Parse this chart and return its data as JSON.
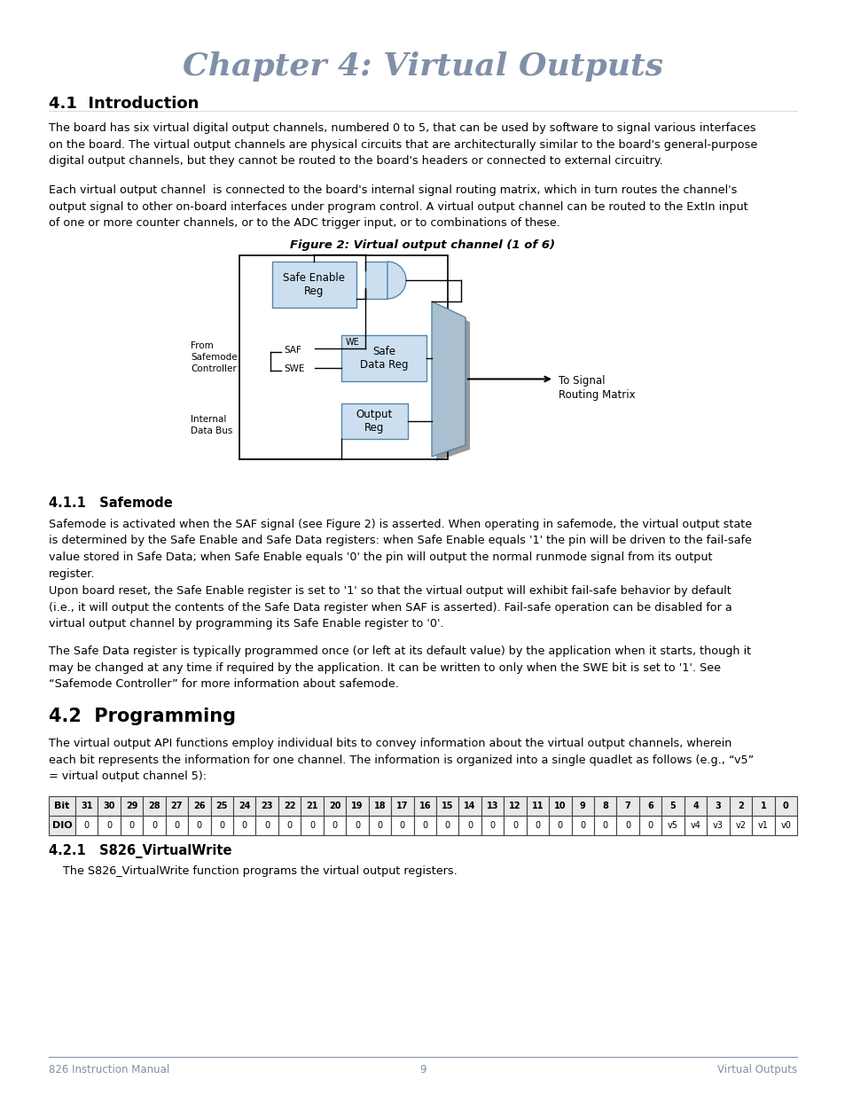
{
  "title": "Chapter 4: Virtual Outputs",
  "title_color": "#8090a8",
  "title_fontsize": 26,
  "section_41_title": "4.1  Introduction",
  "section_41_text1": "The board has six virtual digital output channels, numbered 0 to 5, that can be used by software to signal various interfaces\non the board. The virtual output channels are physical circuits that are architecturally similar to the board's general-purpose\ndigital output channels, but they cannot be routed to the board's headers or connected to external circuitry.",
  "section_41_text2": "Each virtual output channel  is connected to the board's internal signal routing matrix, which in turn routes the channel's\noutput signal to other on-board interfaces under program control. A virtual output channel can be routed to the ExtIn input\nof one or more counter channels, or to the ADC trigger input, or to combinations of these.",
  "figure_caption": "Figure 2: Virtual output channel (1 of 6)",
  "section_411_title": "4.1.1   Safemode",
  "section_411_text1": "Safemode is activated when the SAF signal (see Figure 2) is asserted. When operating in safemode, the virtual output state\nis determined by the Safe Enable and Safe Data registers: when Safe Enable equals '1' the pin will be driven to the fail-safe\nvalue stored in Safe Data; when Safe Enable equals '0' the pin will output the normal runmode signal from its output\nregister.",
  "section_411_text2": "Upon board reset, the Safe Enable register is set to '1' so that the virtual output will exhibit fail-safe behavior by default\n(i.e., it will output the contents of the Safe Data register when SAF is asserted). Fail-safe operation can be disabled for a\nvirtual output channel by programming its Safe Enable register to '0'.",
  "section_411_text3": "The Safe Data register is typically programmed once (or left at its default value) by the application when it starts, though it\nmay be changed at any time if required by the application. It can be written to only when the SWE bit is set to '1'. See\n“Safemode Controller” for more information about safemode.",
  "section_42_title": "4.2  Programming",
  "section_42_text1": "The virtual output API functions employ individual bits to convey information about the virtual output channels, wherein\neach bit represents the information for one channel. The information is organized into a single quadlet as follows (e.g., “v5”\n= virtual output channel 5):",
  "table_headers": [
    "Bit",
    "31",
    "30",
    "29",
    "28",
    "27",
    "26",
    "25",
    "24",
    "23",
    "22",
    "21",
    "20",
    "19",
    "18",
    "17",
    "16",
    "15",
    "14",
    "13",
    "12",
    "11",
    "10",
    "9",
    "8",
    "7",
    "6",
    "5",
    "4",
    "3",
    "2",
    "1",
    "0"
  ],
  "table_row2_label": "DIO",
  "table_row2_values": [
    "0",
    "0",
    "0",
    "0",
    "0",
    "0",
    "0",
    "0",
    "0",
    "0",
    "0",
    "0",
    "0",
    "0",
    "0",
    "0",
    "0",
    "0",
    "0",
    "0",
    "0",
    "0",
    "0",
    "0",
    "0",
    "0",
    "v5",
    "v4",
    "v3",
    "v2",
    "v1",
    "v0"
  ],
  "section_421_title": "4.2.1   S826_VirtualWrite",
  "section_421_text": "    The S826_VirtualWrite function programs the virtual output registers.",
  "footer_left": "826 Instruction Manual",
  "footer_center": "9",
  "footer_right": "Virtual Outputs",
  "footer_color": "#8090a8",
  "body_font_color": "#000000",
  "bg_color": "#ffffff",
  "box_fill": "#ccdff0",
  "box_stroke": "#5585aa",
  "mux_fill": "#aabfd0"
}
